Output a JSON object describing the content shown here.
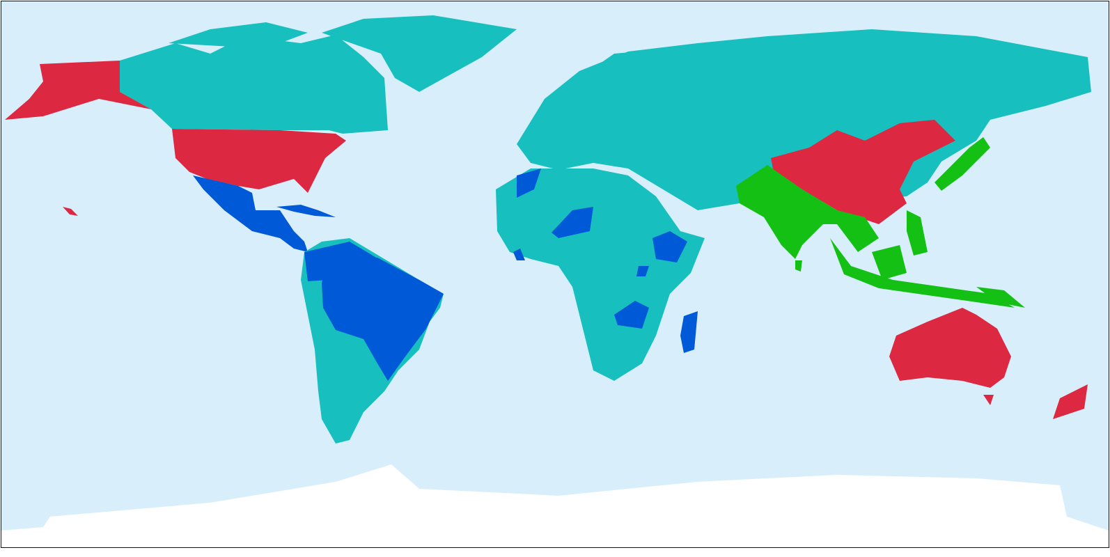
{
  "map": {
    "projection": "equirectangular",
    "colors": {
      "ocean": "#d9eefb",
      "teal": "#17bfbf",
      "red": "#dc2840",
      "blue": "#0059d6",
      "green": "#14c014",
      "antarctica": "#ffffff"
    }
  }
}
